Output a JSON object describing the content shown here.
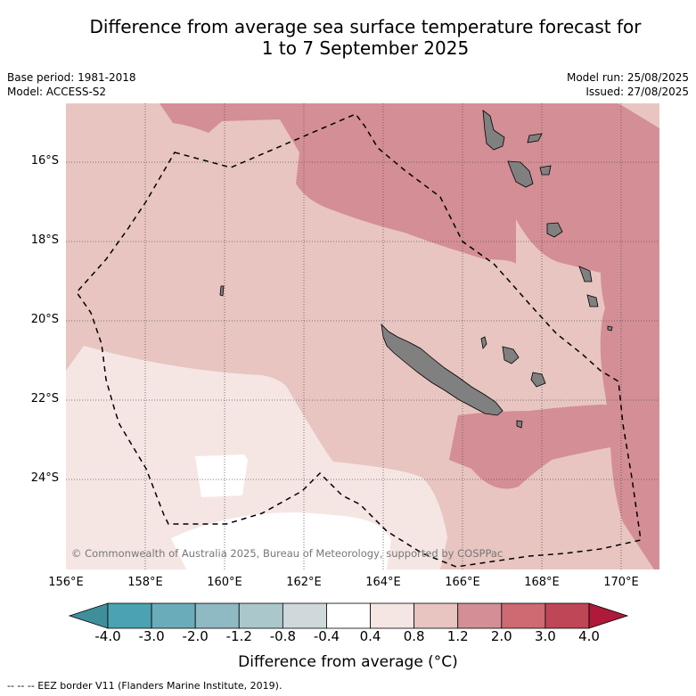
{
  "title": {
    "line1": "Difference from average sea surface temperature forecast for",
    "line2": "1 to 7 September 2025"
  },
  "meta": {
    "base_period": "Base period: 1981-2018",
    "model": "Model: ACCESS-S2",
    "model_run": "Model run: 25/08/2025",
    "issued": "Issued: 27/08/2025"
  },
  "axes": {
    "lat_labels": [
      "16°S",
      "18°S",
      "20°S",
      "22°S",
      "24°S"
    ],
    "lon_labels": [
      "156°E",
      "158°E",
      "160°E",
      "162°E",
      "164°E",
      "166°E",
      "168°E",
      "170°E"
    ]
  },
  "copyright": "© Commonwealth of Australia 2025, Bureau of Meteorology, supported by COSPPac",
  "colorbar": {
    "ticks": [
      "-4.0",
      "-3.0",
      "-2.0",
      "-1.2",
      "-0.8",
      "-0.4",
      "0.4",
      "0.8",
      "1.2",
      "2.0",
      "3.0",
      "4.0"
    ],
    "colors": [
      "#3f8f9b",
      "#4ba3b1",
      "#6aacba",
      "#8fb9c3",
      "#aac8cc",
      "#cfd9db",
      "#ffffff",
      "#f5e6e4",
      "#e8c5c1",
      "#d48e95",
      "#cd6a72",
      "#bf4656",
      "#ae1a3a"
    ],
    "label": "Difference from average (°C)"
  },
  "legend": "--  --  -- EEZ border V11 (Flanders Marine Institute, 2019)."
}
